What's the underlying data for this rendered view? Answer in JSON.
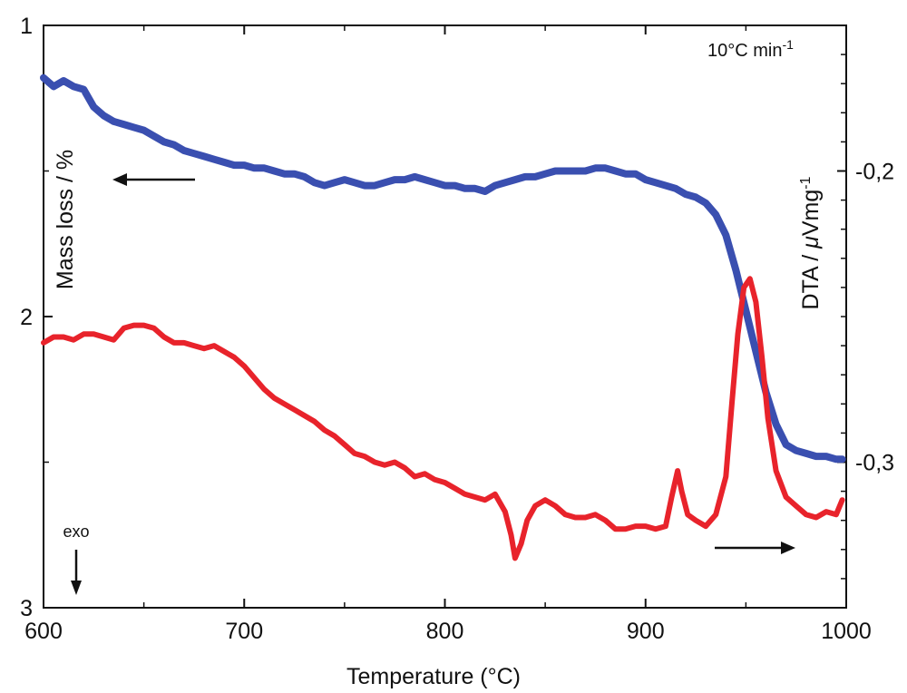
{
  "chart_data": {
    "type": "line",
    "xlabel": "Temperature (°C)",
    "ylabel_left": "Mass loss / %",
    "ylabel_right_prefix": "DTA / ",
    "ylabel_right_mu": "μ",
    "ylabel_right_unit": "Vmg",
    "ylabel_right_sup": "-1",
    "xlim": [
      600,
      1000
    ],
    "ylim_left": [
      1,
      3
    ],
    "ylim_left_inverted": true,
    "ylim_right": [
      -0.35,
      -0.15
    ],
    "x_ticks": [
      "600",
      "700",
      "800",
      "900",
      "1000"
    ],
    "x_tick_values": [
      600,
      700,
      800,
      900,
      1000
    ],
    "y_left_ticks": [
      "1",
      "2",
      "3"
    ],
    "y_left_tick_values": [
      1,
      2,
      3
    ],
    "y_right_ticks": [
      "-0,2",
      "-0,3"
    ],
    "y_right_tick_values": [
      -0.2,
      -0.3
    ],
    "annotations": {
      "heating_rate": "10°C min",
      "heating_rate_sup": "-1",
      "exo": "exo"
    },
    "colors": {
      "mass_loss": "#3a4fb0",
      "dta": "#e8232b",
      "axis": "#111111"
    },
    "series": [
      {
        "axis": "left",
        "color": "#3a4fb0",
        "x": [
          600,
          605,
          610,
          615,
          620,
          625,
          630,
          635,
          640,
          645,
          650,
          655,
          660,
          665,
          670,
          675,
          680,
          685,
          690,
          695,
          700,
          705,
          710,
          715,
          720,
          725,
          730,
          735,
          740,
          745,
          750,
          755,
          760,
          765,
          770,
          775,
          780,
          785,
          790,
          795,
          800,
          805,
          810,
          815,
          820,
          825,
          830,
          835,
          840,
          845,
          850,
          855,
          860,
          865,
          870,
          875,
          880,
          885,
          890,
          895,
          900,
          905,
          910,
          915,
          920,
          925,
          930,
          935,
          940,
          945,
          950,
          955,
          960,
          965,
          970,
          975,
          980,
          985,
          990,
          995,
          998
        ],
        "values": [
          1.18,
          1.21,
          1.19,
          1.21,
          1.22,
          1.28,
          1.31,
          1.33,
          1.34,
          1.35,
          1.36,
          1.38,
          1.4,
          1.41,
          1.43,
          1.44,
          1.45,
          1.46,
          1.47,
          1.48,
          1.48,
          1.49,
          1.49,
          1.5,
          1.51,
          1.51,
          1.52,
          1.54,
          1.55,
          1.54,
          1.53,
          1.54,
          1.55,
          1.55,
          1.54,
          1.53,
          1.53,
          1.52,
          1.53,
          1.54,
          1.55,
          1.55,
          1.56,
          1.56,
          1.57,
          1.55,
          1.54,
          1.53,
          1.52,
          1.52,
          1.51,
          1.5,
          1.5,
          1.5,
          1.5,
          1.49,
          1.49,
          1.5,
          1.51,
          1.51,
          1.53,
          1.54,
          1.55,
          1.56,
          1.58,
          1.59,
          1.61,
          1.65,
          1.72,
          1.84,
          1.98,
          2.12,
          2.26,
          2.37,
          2.44,
          2.46,
          2.47,
          2.48,
          2.48,
          2.49,
          2.49
        ]
      },
      {
        "axis": "right",
        "color": "#e8232b",
        "x": [
          600,
          605,
          610,
          615,
          620,
          625,
          630,
          635,
          640,
          645,
          650,
          655,
          660,
          665,
          670,
          675,
          680,
          685,
          690,
          695,
          700,
          705,
          710,
          715,
          720,
          725,
          730,
          735,
          740,
          745,
          750,
          755,
          760,
          765,
          770,
          775,
          780,
          785,
          790,
          795,
          800,
          805,
          810,
          815,
          820,
          825,
          830,
          833,
          835,
          838,
          841,
          845,
          850,
          855,
          860,
          865,
          870,
          875,
          880,
          885,
          890,
          895,
          900,
          905,
          910,
          913,
          916,
          918,
          921,
          925,
          930,
          935,
          940,
          943,
          946,
          949,
          952,
          955,
          958,
          961,
          965,
          970,
          975,
          980,
          985,
          990,
          995,
          998
        ],
        "values": [
          -0.259,
          -0.257,
          -0.257,
          -0.258,
          -0.256,
          -0.256,
          -0.257,
          -0.258,
          -0.254,
          -0.253,
          -0.253,
          -0.254,
          -0.257,
          -0.259,
          -0.259,
          -0.26,
          -0.261,
          -0.26,
          -0.262,
          -0.264,
          -0.267,
          -0.271,
          -0.275,
          -0.278,
          -0.28,
          -0.282,
          -0.284,
          -0.286,
          -0.289,
          -0.291,
          -0.294,
          -0.297,
          -0.298,
          -0.3,
          -0.301,
          -0.3,
          -0.302,
          -0.305,
          -0.304,
          -0.306,
          -0.307,
          -0.309,
          -0.311,
          -0.312,
          -0.313,
          -0.311,
          -0.317,
          -0.325,
          -0.333,
          -0.328,
          -0.32,
          -0.315,
          -0.313,
          -0.315,
          -0.318,
          -0.319,
          -0.319,
          -0.318,
          -0.32,
          -0.323,
          -0.323,
          -0.322,
          -0.322,
          -0.323,
          -0.322,
          -0.312,
          -0.303,
          -0.31,
          -0.318,
          -0.32,
          -0.322,
          -0.318,
          -0.305,
          -0.28,
          -0.256,
          -0.24,
          -0.237,
          -0.245,
          -0.264,
          -0.285,
          -0.303,
          -0.312,
          -0.315,
          -0.318,
          -0.319,
          -0.317,
          -0.318,
          -0.313
        ]
      }
    ]
  }
}
